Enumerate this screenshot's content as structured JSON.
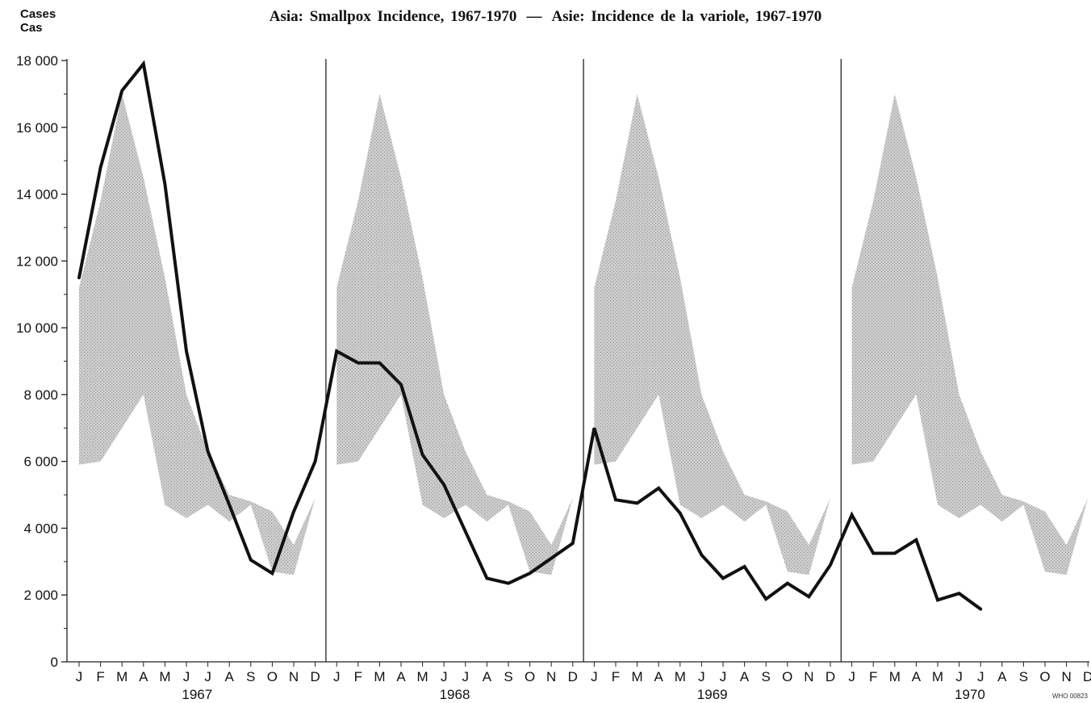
{
  "chart_data": {
    "type": "area",
    "title": "Asia: Smallpox Incidence, 1967-1970",
    "title_separator": "—",
    "title_fr": "Asie: Incidence de la variole, 1967-1970",
    "ylabel": "Cases",
    "ylabel_fr": "Cas",
    "ylim": [
      0,
      18000
    ],
    "yticks": [
      0,
      2000,
      4000,
      6000,
      8000,
      10000,
      12000,
      14000,
      16000,
      18000
    ],
    "ytick_labels": [
      "0",
      "2 000",
      "4 000",
      "6 000",
      "8 000",
      "10 000",
      "12 000",
      "14 000",
      "16 000",
      "18 000"
    ],
    "months": [
      "J",
      "F",
      "M",
      "A",
      "M",
      "J",
      "J",
      "A",
      "S",
      "O",
      "N",
      "D"
    ],
    "years": [
      "1967",
      "1968",
      "1969",
      "1970"
    ],
    "grid": false,
    "series": [
      {
        "kind": "line",
        "values": [
          [
            11500,
            14800,
            17100,
            17900,
            14300,
            9300,
            6300,
            4700,
            3050,
            2650,
            4500,
            6000
          ],
          [
            9300,
            8950,
            8950,
            8300,
            6200,
            5300,
            3900,
            2500,
            2350,
            2650,
            3100,
            3550
          ],
          [
            7000,
            4850,
            4750,
            5200,
            4450,
            3200,
            2500,
            2850,
            1880,
            2350,
            1950,
            2900
          ],
          [
            4400,
            3250,
            3250,
            3650,
            1850,
            2050,
            1580
          ]
        ]
      },
      {
        "kind": "band",
        "upper": [
          11200,
          13800,
          17000,
          14500,
          11500,
          8000,
          6300,
          5000,
          4800,
          4500,
          3500,
          4900
        ],
        "lower": [
          5900,
          6000,
          7000,
          8000,
          4700,
          4300,
          4700,
          4200,
          4700,
          2700,
          2600,
          4900
        ]
      }
    ],
    "watermark": "WHO 00823"
  }
}
